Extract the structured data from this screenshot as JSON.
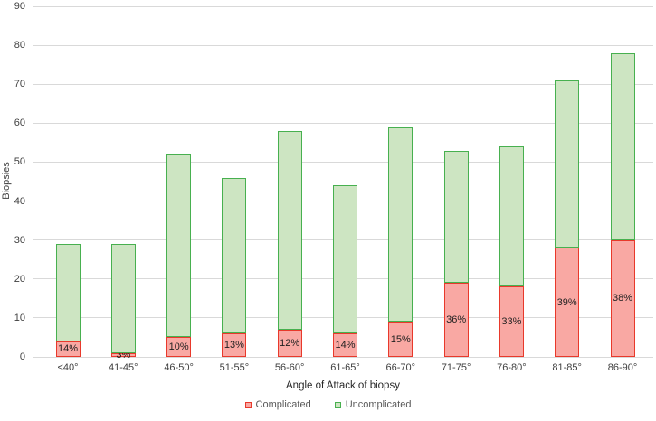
{
  "chart_data": {
    "type": "bar",
    "stacked": true,
    "title": "",
    "xlabel": "Angle of Attack of biopsy",
    "ylabel": "Biopsies",
    "ylim": [
      0,
      90
    ],
    "yticks": [
      0,
      10,
      20,
      30,
      40,
      50,
      60,
      70,
      80,
      90
    ],
    "grid": true,
    "legend_position": "bottom",
    "categories": [
      "<40°",
      "41-45°",
      "46-50°",
      "51-55°",
      "56-60°",
      "61-65°",
      "66-70°",
      "71-75°",
      "76-80°",
      "81-85°",
      "86-90°"
    ],
    "totals": [
      29,
      29,
      52,
      46,
      58,
      44,
      59,
      53,
      54,
      71,
      78
    ],
    "series": [
      {
        "name": "Complicated",
        "values": [
          4,
          1,
          5,
          6,
          7,
          6,
          9,
          19,
          18,
          28,
          30
        ],
        "labels": [
          "14%",
          "3%",
          "10%",
          "13%",
          "12%",
          "14%",
          "15%",
          "36%",
          "33%",
          "39%",
          "38%"
        ],
        "fill": "#F9A8A3",
        "border": "#E8392B"
      },
      {
        "name": "Uncomplicated",
        "values": [
          25,
          28,
          47,
          40,
          51,
          38,
          50,
          34,
          36,
          43,
          48
        ],
        "labels": [],
        "fill": "#CDE5C2",
        "border": "#47B04F"
      }
    ]
  },
  "colors": {
    "gridline": "#D9D9D9",
    "tick_text": "#3F3F3F",
    "percent_label_text": "#1F1F1F",
    "legend_text": "#595959"
  }
}
